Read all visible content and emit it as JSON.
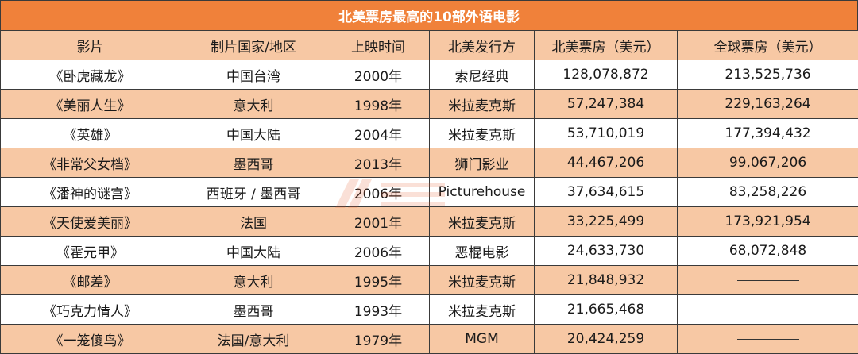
{
  "title": "北美票房最高的10部外语电影",
  "columns": [
    "影片",
    "制片国家/地区",
    "上映时间",
    "北美发行方",
    "北美票房（美元）",
    "全球票房（美元）"
  ],
  "rows": [
    {
      "film": "《卧虎藏龙》",
      "country": "中国台湾",
      "year": "2000年",
      "distributor": "索尼经典",
      "na": "128,078,872",
      "global": "213,525,736"
    },
    {
      "film": "《美丽人生》",
      "country": "意大利",
      "year": "1998年",
      "distributor": "米拉麦克斯",
      "na": "57,247,384",
      "global": "229,163,264"
    },
    {
      "film": "《英雄》",
      "country": "中国大陆",
      "year": "2004年",
      "distributor": "米拉麦克斯",
      "na": "53,710,019",
      "global": "177,394,432"
    },
    {
      "film": "《非常父女档》",
      "country": "墨西哥",
      "year": "2013年",
      "distributor": "狮门影业",
      "na": "44,467,206",
      "global": "99,067,206"
    },
    {
      "film": "《潘神的谜宫》",
      "country": "西班牙 / 墨西哥",
      "year": "2006年",
      "distributor": "Picturehouse",
      "na": "37,634,615",
      "global": "83,258,226"
    },
    {
      "film": "《天使爱美丽》",
      "country": "法国",
      "year": "2001年",
      "distributor": "米拉麦克斯",
      "na": "33,225,499",
      "global": "173,921,954"
    },
    {
      "film": "《霍元甲》",
      "country": "中国大陆",
      "year": "2006年",
      "distributor": "恶棍电影",
      "na": "24,633,730",
      "global": "68,072,848"
    },
    {
      "film": "《邮差》",
      "country": "意大利",
      "year": "1995年",
      "distributor": "米拉麦克斯",
      "na": "21,848,932",
      "global": ""
    },
    {
      "film": "《巧克力情人》",
      "country": "墨西哥",
      "year": "1993年",
      "distributor": "米拉麦克斯",
      "na": "21,665,468",
      "global": ""
    },
    {
      "film": "《一笼傻鸟》",
      "country": "法国/意大利",
      "year": "1979年",
      "distributor": "MGM",
      "na": "20,424,259",
      "global": ""
    }
  ],
  "colors": {
    "title_bg": "#f0813a",
    "stripe": "#f7c8a4",
    "border": "#3a3a3a"
  }
}
